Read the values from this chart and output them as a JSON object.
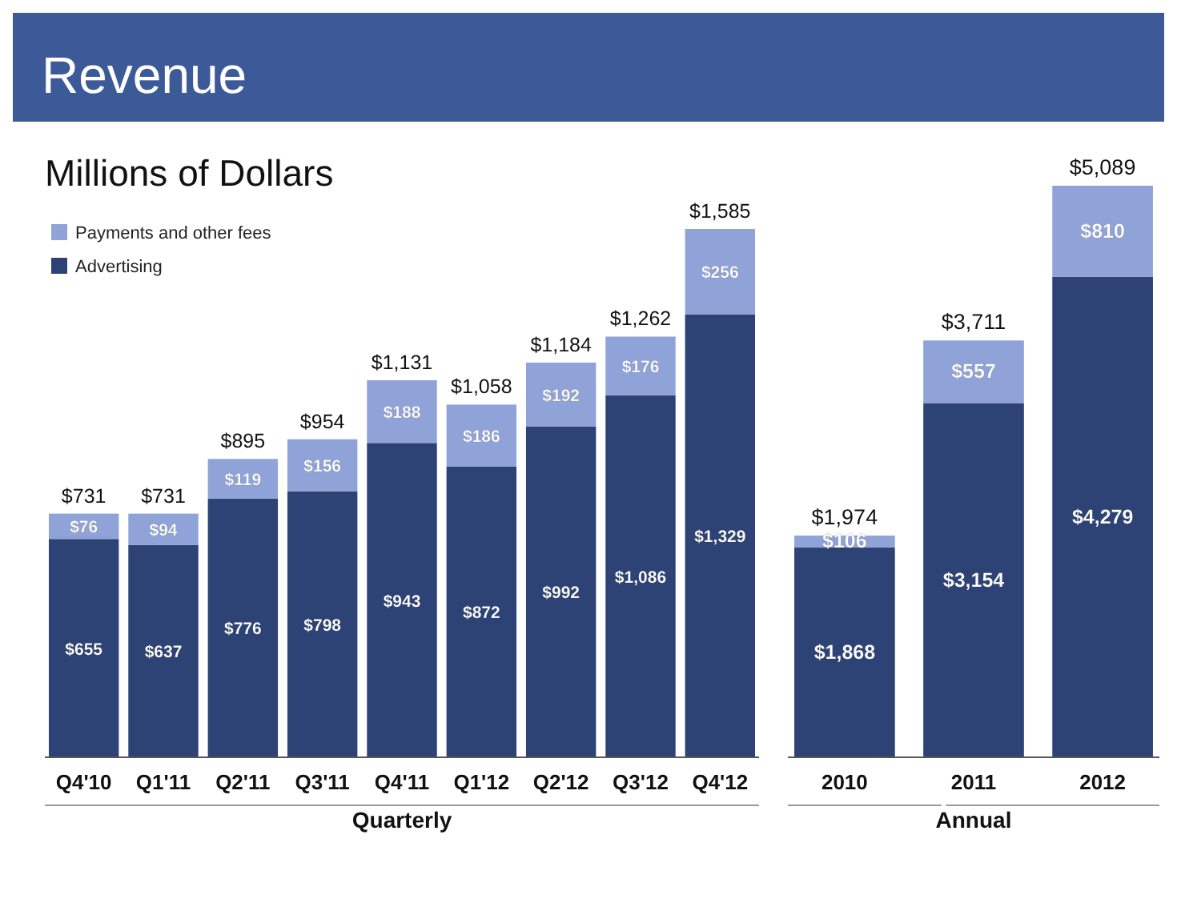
{
  "chart_data": [
    {
      "type": "bar",
      "title": "Revenue",
      "subtitle": "Millions of Dollars",
      "xlabel": "Quarterly",
      "stacked": true,
      "legend": "top left",
      "categories": [
        "Q4'10",
        "Q1'11",
        "Q2'11",
        "Q3'11",
        "Q4'11",
        "Q1'12",
        "Q2'12",
        "Q3'12",
        "Q4'12"
      ],
      "series": [
        {
          "name": "Advertising",
          "color": "#2d4275",
          "values": [
            655,
            637,
            776,
            798,
            943,
            872,
            992,
            1086,
            1329
          ],
          "value_labels": [
            "$655",
            "$637",
            "$776",
            "$798",
            "$943",
            "$872",
            "$992",
            "$1,086",
            "$1,329"
          ]
        },
        {
          "name": "Payments and other fees",
          "color": "#8fa3d8",
          "values": [
            76,
            94,
            119,
            156,
            188,
            186,
            192,
            176,
            256
          ],
          "value_labels": [
            "$76",
            "$94",
            "$119",
            "$156",
            "$188",
            "$186",
            "$192",
            "$176",
            "$256"
          ]
        }
      ],
      "totals": [
        "$731",
        "$731",
        "$895",
        "$954",
        "$1,131",
        "$1,058",
        "$1,184",
        "$1,262",
        "$1,585"
      ]
    },
    {
      "type": "bar",
      "xlabel": "Annual",
      "stacked": true,
      "categories": [
        "2010",
        "2011",
        "2012"
      ],
      "series": [
        {
          "color": "#2d4275",
          "values": [
            1868,
            3154,
            4279
          ],
          "value_labels": [
            "$1,868",
            "$3,154",
            "$4,279"
          ]
        },
        {
          "color": "#8fa3d8",
          "values": [
            106,
            557,
            810
          ],
          "value_labels": [
            "$106",
            "$557",
            "$810"
          ]
        }
      ],
      "totals": [
        "$1,974",
        "$3,711",
        "$5,089"
      ]
    }
  ]
}
